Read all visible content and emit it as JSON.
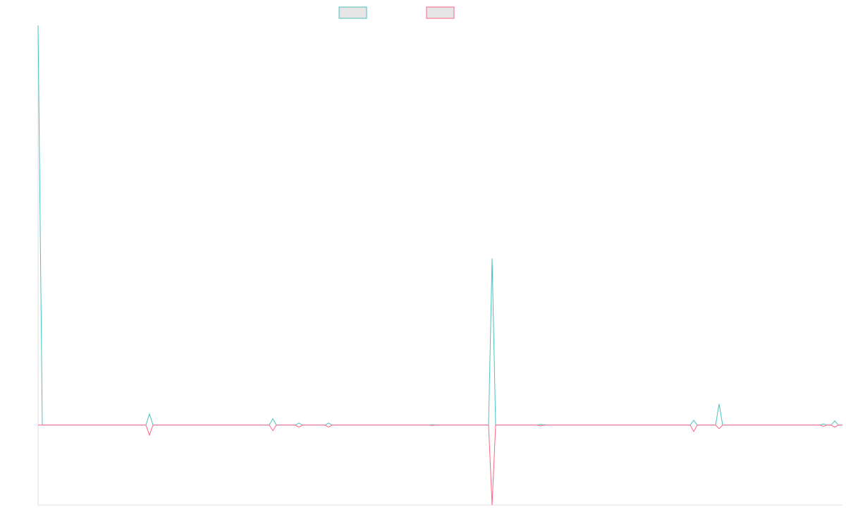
{
  "chart_data": {
    "type": "line",
    "x": [
      0,
      6,
      153,
      158,
      163,
      328,
      333,
      338,
      365,
      370,
      375,
      407,
      412,
      417,
      554,
      559,
      564,
      639,
      644,
      649,
      708,
      713,
      718,
      925,
      930,
      935,
      961,
      966,
      971,
      1109,
      1114,
      1119,
      1125,
      1130,
      1135,
      1141
    ],
    "xlim": [
      0,
      1141
    ],
    "ylim": [
      -20,
      100
    ],
    "series": [
      {
        "color": "#4bc0c0",
        "values": [
          100,
          0,
          0,
          2.8,
          0,
          0,
          1.6,
          0,
          0,
          0.5,
          0,
          0,
          0.5,
          0,
          0,
          0.1,
          0,
          0,
          41.7,
          0,
          0,
          0.2,
          0,
          0,
          1.2,
          0,
          0,
          5.3,
          0,
          0,
          0.3,
          0,
          0,
          1.1,
          0,
          0
        ]
      },
      {
        "color": "#ff6384",
        "values": [
          0,
          0,
          0,
          -2.5,
          0,
          0,
          -1.4,
          0,
          0,
          -0.5,
          0,
          0,
          -0.5,
          0,
          0,
          -0.1,
          0,
          0,
          -20,
          0,
          0,
          -0.2,
          0,
          0,
          -1.6,
          0,
          0,
          -0.9,
          0,
          0,
          -0.3,
          0,
          0,
          -0.5,
          0,
          0
        ]
      }
    ]
  }
}
